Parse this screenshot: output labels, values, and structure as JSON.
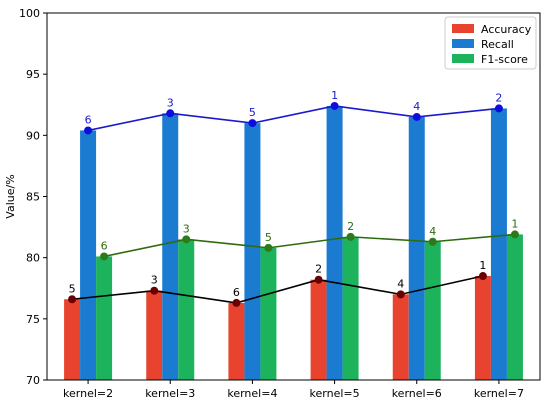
{
  "chart_data": {
    "type": "bar",
    "title": "",
    "xlabel": "",
    "ylabel": "Value/%",
    "ylim": [
      70,
      100
    ],
    "yticks": [
      70,
      75,
      80,
      85,
      90,
      95,
      100
    ],
    "grid": false,
    "legend_position": "top-right",
    "categories": [
      "kernel=2",
      "kernel=3",
      "kernel=4",
      "kernel=5",
      "kernel=6",
      "kernel=7"
    ],
    "series": [
      {
        "name": "Accuracy",
        "color": "#e8432f",
        "line_color": "#000000",
        "marker_color": "#6b0000",
        "label_color": "#000000",
        "values": [
          76.6,
          77.3,
          76.3,
          78.2,
          77.0,
          78.5
        ],
        "ranks": [
          "5",
          "3",
          "6",
          "2",
          "4",
          "1"
        ]
      },
      {
        "name": "Recall",
        "color": "#1a7bd0",
        "line_color": "#1a1acc",
        "marker_color": "#0d0ddd",
        "label_color": "#1a1acc",
        "values": [
          90.4,
          91.8,
          91.0,
          92.4,
          91.5,
          92.2
        ],
        "ranks": [
          "6",
          "3",
          "5",
          "1",
          "4",
          "2"
        ]
      },
      {
        "name": "F1-score",
        "color": "#1db35c",
        "line_color": "#2e6b0f",
        "marker_color": "#2d7a1a",
        "label_color": "#2e6b0f",
        "values": [
          80.1,
          81.5,
          80.8,
          81.7,
          81.3,
          81.9
        ],
        "ranks": [
          "6",
          "3",
          "5",
          "2",
          "4",
          "1"
        ]
      }
    ]
  }
}
